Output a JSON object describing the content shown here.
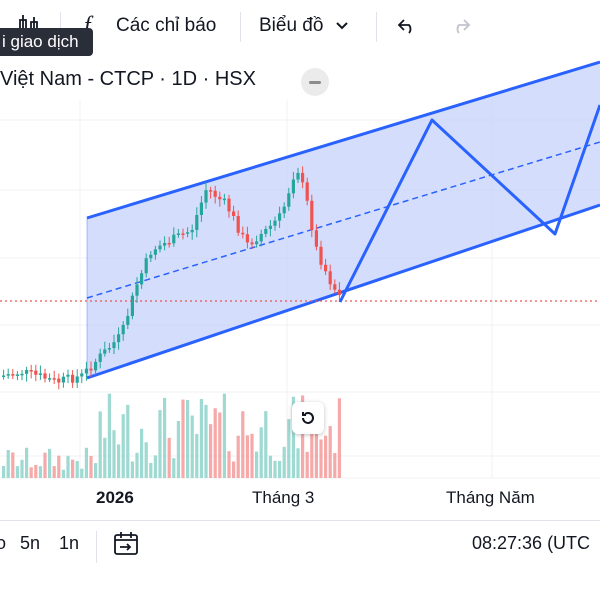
{
  "toolbar": {
    "indicators_label": "Các chỉ báo",
    "chart_type_label": "Biểu đồ",
    "fx_symbol": "f"
  },
  "tooltip": {
    "text": "i giao dịch"
  },
  "symbol": {
    "title": "Việt Nam - CTCP · 1D · HSX"
  },
  "xaxis": {
    "labels": [
      "2026",
      "Tháng 3",
      "Tháng Năm"
    ]
  },
  "bottom": {
    "range_partial": "o",
    "range_5n": "5n",
    "range_1n": "1n",
    "clock": "08:27:36 (UTC"
  },
  "colors": {
    "up": "#26a69a",
    "down": "#ef5350",
    "channel_line": "#2962ff",
    "channel_fill": "#c6d3fb"
  }
}
